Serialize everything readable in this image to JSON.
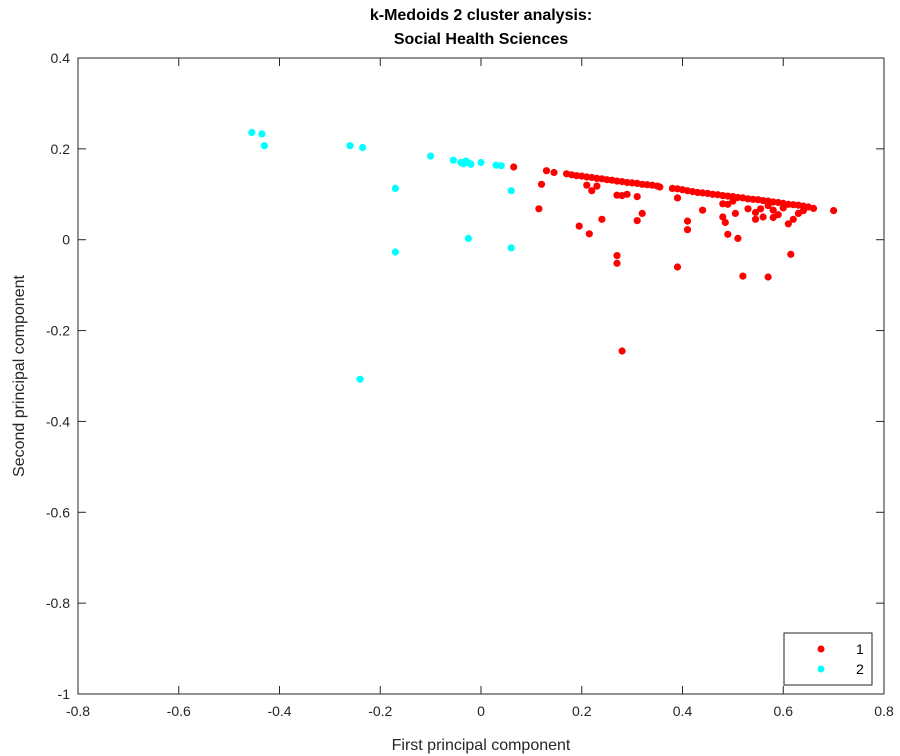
{
  "chart_data": {
    "type": "scatter",
    "title": [
      "k-Medoids 2 cluster analysis:",
      "Social Health Sciences"
    ],
    "xlabel": "First principal component",
    "ylabel": "Second principal component",
    "xlim": [
      -0.8,
      0.8
    ],
    "ylim": [
      -1,
      0.4
    ],
    "xticks": [
      -0.8,
      -0.6,
      -0.4,
      -0.2,
      0,
      0.2,
      0.4,
      0.6,
      0.8
    ],
    "yticks": [
      -1,
      -0.8,
      -0.6,
      -0.4,
      -0.2,
      0,
      0.2,
      0.4
    ],
    "xtick_labels": [
      "-0.8",
      "-0.6",
      "-0.4",
      "-0.2",
      "0",
      "0.2",
      "0.4",
      "0.6",
      "0.8"
    ],
    "ytick_labels": [
      "-1",
      "-0.8",
      "-0.6",
      "-0.4",
      "-0.2",
      "0",
      "0.2",
      "0.4"
    ],
    "grid": false,
    "legend_position": "bottom-right",
    "series": [
      {
        "name": "1",
        "color": "#ff0000",
        "points": [
          [
            0.065,
            0.16
          ],
          [
            0.115,
            0.068
          ],
          [
            0.12,
            0.122
          ],
          [
            0.13,
            0.152
          ],
          [
            0.145,
            0.148
          ],
          [
            0.17,
            0.145
          ],
          [
            0.18,
            0.143
          ],
          [
            0.19,
            0.141
          ],
          [
            0.2,
            0.14
          ],
          [
            0.21,
            0.138
          ],
          [
            0.22,
            0.137
          ],
          [
            0.23,
            0.135
          ],
          [
            0.24,
            0.134
          ],
          [
            0.25,
            0.132
          ],
          [
            0.26,
            0.131
          ],
          [
            0.27,
            0.129
          ],
          [
            0.28,
            0.128
          ],
          [
            0.29,
            0.126
          ],
          [
            0.3,
            0.125
          ],
          [
            0.31,
            0.124
          ],
          [
            0.32,
            0.122
          ],
          [
            0.33,
            0.121
          ],
          [
            0.34,
            0.12
          ],
          [
            0.35,
            0.118
          ],
          [
            0.355,
            0.116
          ],
          [
            0.38,
            0.113
          ],
          [
            0.39,
            0.112
          ],
          [
            0.4,
            0.11
          ],
          [
            0.41,
            0.108
          ],
          [
            0.42,
            0.106
          ],
          [
            0.43,
            0.104
          ],
          [
            0.44,
            0.103
          ],
          [
            0.45,
            0.102
          ],
          [
            0.46,
            0.1
          ],
          [
            0.47,
            0.099
          ],
          [
            0.48,
            0.097
          ],
          [
            0.49,
            0.096
          ],
          [
            0.5,
            0.095
          ],
          [
            0.51,
            0.093
          ],
          [
            0.52,
            0.092
          ],
          [
            0.53,
            0.09
          ],
          [
            0.54,
            0.089
          ],
          [
            0.55,
            0.088
          ],
          [
            0.56,
            0.086
          ],
          [
            0.57,
            0.085
          ],
          [
            0.58,
            0.083
          ],
          [
            0.59,
            0.082
          ],
          [
            0.6,
            0.08
          ],
          [
            0.61,
            0.078
          ],
          [
            0.62,
            0.077
          ],
          [
            0.63,
            0.076
          ],
          [
            0.64,
            0.074
          ],
          [
            0.65,
            0.072
          ],
          [
            0.66,
            0.069
          ],
          [
            0.7,
            0.064
          ],
          [
            0.21,
            0.12
          ],
          [
            0.22,
            0.108
          ],
          [
            0.23,
            0.118
          ],
          [
            0.27,
            0.098
          ],
          [
            0.28,
            0.097
          ],
          [
            0.29,
            0.1
          ],
          [
            0.31,
            0.095
          ],
          [
            0.31,
            0.042
          ],
          [
            0.32,
            0.058
          ],
          [
            0.24,
            0.045
          ],
          [
            0.195,
            0.03
          ],
          [
            0.215,
            0.013
          ],
          [
            0.39,
            0.092
          ],
          [
            0.41,
            0.041
          ],
          [
            0.41,
            0.022
          ],
          [
            0.44,
            0.065
          ],
          [
            0.48,
            0.079
          ],
          [
            0.48,
            0.05
          ],
          [
            0.485,
            0.038
          ],
          [
            0.49,
            0.078
          ],
          [
            0.5,
            0.085
          ],
          [
            0.49,
            0.012
          ],
          [
            0.505,
            0.058
          ],
          [
            0.51,
            0.003
          ],
          [
            0.53,
            0.068
          ],
          [
            0.545,
            0.06
          ],
          [
            0.545,
            0.045
          ],
          [
            0.555,
            0.068
          ],
          [
            0.56,
            0.05
          ],
          [
            0.57,
            0.075
          ],
          [
            0.58,
            0.065
          ],
          [
            0.58,
            0.049
          ],
          [
            0.59,
            0.055
          ],
          [
            0.6,
            0.07
          ],
          [
            0.61,
            0.035
          ],
          [
            0.62,
            0.045
          ],
          [
            0.63,
            0.058
          ],
          [
            0.64,
            0.064
          ],
          [
            0.27,
            -0.035
          ],
          [
            0.27,
            -0.052
          ],
          [
            0.39,
            -0.06
          ],
          [
            0.52,
            -0.08
          ],
          [
            0.57,
            -0.082
          ],
          [
            0.615,
            -0.032
          ],
          [
            0.28,
            -0.245
          ]
        ]
      },
      {
        "name": "2",
        "color": "#00ffff",
        "points": [
          [
            -0.455,
            0.236
          ],
          [
            -0.435,
            0.233
          ],
          [
            -0.43,
            0.207
          ],
          [
            -0.26,
            0.207
          ],
          [
            -0.235,
            0.203
          ],
          [
            -0.1,
            0.184
          ],
          [
            -0.055,
            0.175
          ],
          [
            -0.04,
            0.17
          ],
          [
            -0.035,
            0.167
          ],
          [
            -0.03,
            0.173
          ],
          [
            -0.025,
            0.169
          ],
          [
            -0.02,
            0.166
          ],
          [
            0.0,
            0.17
          ],
          [
            0.03,
            0.164
          ],
          [
            0.04,
            0.163
          ],
          [
            0.06,
            0.108
          ],
          [
            -0.17,
            0.113
          ],
          [
            -0.025,
            0.003
          ],
          [
            0.06,
            -0.018
          ],
          [
            -0.17,
            -0.027
          ],
          [
            -0.24,
            -0.307
          ]
        ]
      }
    ]
  }
}
